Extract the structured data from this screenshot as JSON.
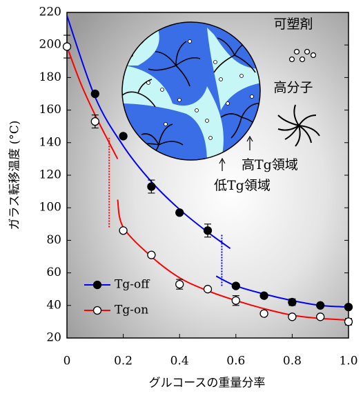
{
  "chart_data": {
    "type": "scatter",
    "x_label": "グルコースの重量分率",
    "y_label": "ガラス転移温度 (°C)",
    "xlim": [
      0,
      1
    ],
    "ylim": [
      20,
      220
    ],
    "xticks": [
      0,
      0.2,
      0.4,
      0.6,
      0.8,
      {
        "value": 1,
        "label": "1.0"
      }
    ],
    "yticks": [
      20,
      40,
      60,
      80,
      100,
      120,
      140,
      160,
      180,
      200,
      220
    ],
    "legend": "lower left",
    "series": [
      {
        "name": "Tg-off",
        "color": "#0000ff",
        "marker_fill": "#000000",
        "x": [
          0.1,
          0.2,
          0.3,
          0.4,
          0.5,
          0.6,
          0.7,
          0.8,
          0.9,
          1.0
        ],
        "values": [
          170,
          144,
          113,
          97,
          86,
          52,
          46,
          42,
          40,
          39
        ],
        "errors": [
          1,
          1,
          4,
          1,
          4,
          1,
          1,
          2,
          1,
          1
        ]
      },
      {
        "name": "Tg-on",
        "color": "#ff0000",
        "marker_fill": "#ffffff",
        "x": [
          0,
          0.1,
          0.2,
          0.3,
          0.4,
          0.5,
          0.6,
          0.7,
          0.8,
          0.9,
          1.0
        ],
        "values": [
          199,
          153,
          86,
          71,
          53,
          50,
          43,
          35,
          33,
          33,
          30
        ],
        "errors": [
          7,
          4,
          1,
          1,
          3,
          1,
          3,
          1,
          1,
          1,
          2
        ]
      }
    ],
    "curves": [
      {
        "color": "#0000ff",
        "x": [
          0,
          0.1,
          0.2,
          0.3,
          0.4,
          0.5,
          0.58
        ],
        "values": [
          218,
          168,
          138,
          116,
          99,
          85,
          75
        ]
      },
      {
        "color": "#0000ff",
        "x": [
          0.53,
          0.6,
          0.7,
          0.8,
          0.9,
          1.0
        ],
        "values": [
          58,
          52,
          47,
          43,
          40,
          39
        ]
      },
      {
        "color": "#ff0000",
        "x": [
          0,
          0.05,
          0.1,
          0.15,
          0.18
        ],
        "values": [
          199,
          176,
          157,
          140,
          130
        ]
      },
      {
        "color": "#ff0000",
        "x": [
          0.18,
          0.2,
          0.3,
          0.4,
          0.5,
          0.6,
          0.7,
          0.8,
          0.9,
          1.0
        ],
        "values": [
          105,
          88,
          70,
          57,
          49,
          43,
          38,
          34,
          32,
          31
        ]
      }
    ],
    "dotted_lines": [
      {
        "color": "#ff0000",
        "x": 0.15,
        "values": [
          88,
          143
        ]
      },
      {
        "color": "#0000ff",
        "x": 0.55,
        "values": [
          52,
          84
        ]
      }
    ],
    "annotations": [
      "可塑剤",
      "高分子",
      "高Tg領域",
      "低Tg領域"
    ]
  }
}
